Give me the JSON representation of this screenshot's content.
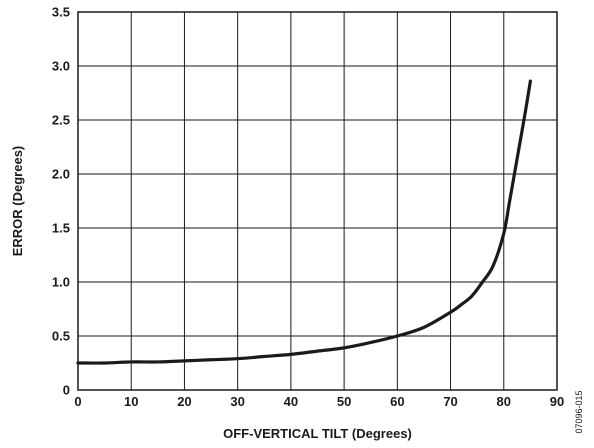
{
  "chart_data": {
    "type": "line",
    "title": "",
    "xlabel": "OFF-VERTICAL TILT (Degrees)",
    "ylabel": "ERROR (Degrees)",
    "xlim": [
      0,
      90
    ],
    "ylim": [
      0,
      3.5
    ],
    "x_ticks": [
      "0",
      "10",
      "20",
      "30",
      "40",
      "50",
      "60",
      "70",
      "80",
      "90"
    ],
    "y_ticks": [
      "0",
      "0.5",
      "1.0",
      "1.5",
      "2.0",
      "2.5",
      "3.0",
      "3.5"
    ],
    "grid": true,
    "legend": "none",
    "figure_id": "07096-015",
    "line_color": "#1a1a1a",
    "series": [
      {
        "x": [
          0,
          5,
          10,
          15,
          20,
          25,
          30,
          35,
          40,
          45,
          50,
          55,
          60,
          65,
          70,
          72,
          74,
          76,
          78,
          80,
          81,
          82,
          83,
          84,
          85
        ],
        "values": [
          0.25,
          0.25,
          0.26,
          0.26,
          0.27,
          0.28,
          0.29,
          0.31,
          0.33,
          0.36,
          0.39,
          0.44,
          0.5,
          0.58,
          0.72,
          0.79,
          0.87,
          1.0,
          1.15,
          1.45,
          1.72,
          2.0,
          2.28,
          2.56,
          2.86
        ]
      }
    ]
  }
}
